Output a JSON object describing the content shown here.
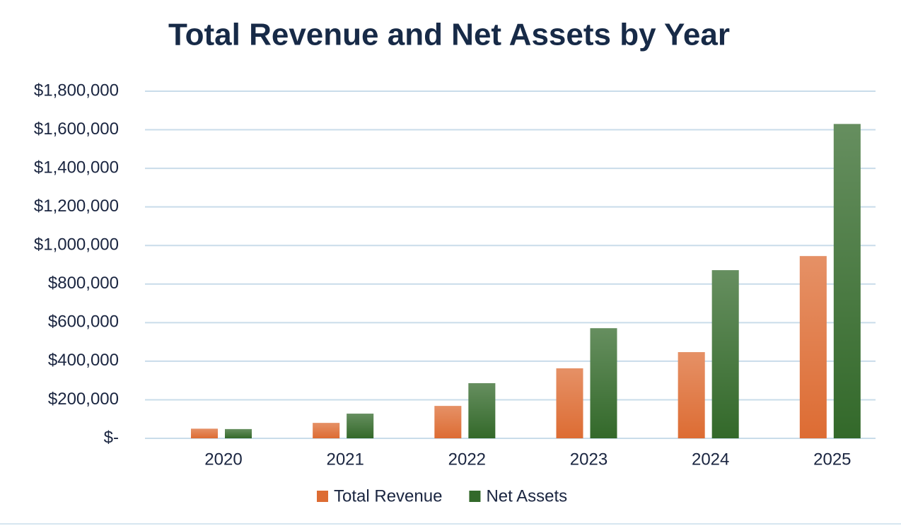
{
  "chart_data": {
    "type": "bar",
    "title": "Total Revenue and Net Assets by Year",
    "categories": [
      "2020",
      "2021",
      "2022",
      "2023",
      "2024",
      "2025"
    ],
    "series": [
      {
        "color": "#1f3a5f",
        "values": [
          0,
          0,
          0,
          0,
          0,
          0
        ]
      },
      {
        "name": "Total Revenue",
        "color": "#dd6c33",
        "values": [
          50000,
          80000,
          168000,
          363000,
          447000,
          945000
        ]
      },
      {
        "name": "Net Assets",
        "color": "#33692a",
        "values": [
          48000,
          128000,
          286000,
          571000,
          872000,
          1630000
        ]
      }
    ],
    "ylim": [
      0,
      1800000
    ],
    "yticks": [
      {
        "value": 0,
        "label": "$-"
      },
      {
        "value": 200000,
        "label": "$200,000"
      },
      {
        "value": 400000,
        "label": "$400,000"
      },
      {
        "value": 600000,
        "label": "$600,000"
      },
      {
        "value": 800000,
        "label": "$800,000"
      },
      {
        "value": 1000000,
        "label": "$1,000,000"
      },
      {
        "value": 1200000,
        "label": "$1,200,000"
      },
      {
        "value": 1400000,
        "label": "$1,400,000"
      },
      {
        "value": 1600000,
        "label": "$1,600,000"
      },
      {
        "value": 1800000,
        "label": "$1,800,000"
      }
    ],
    "grid": true,
    "legend": "bottom"
  }
}
